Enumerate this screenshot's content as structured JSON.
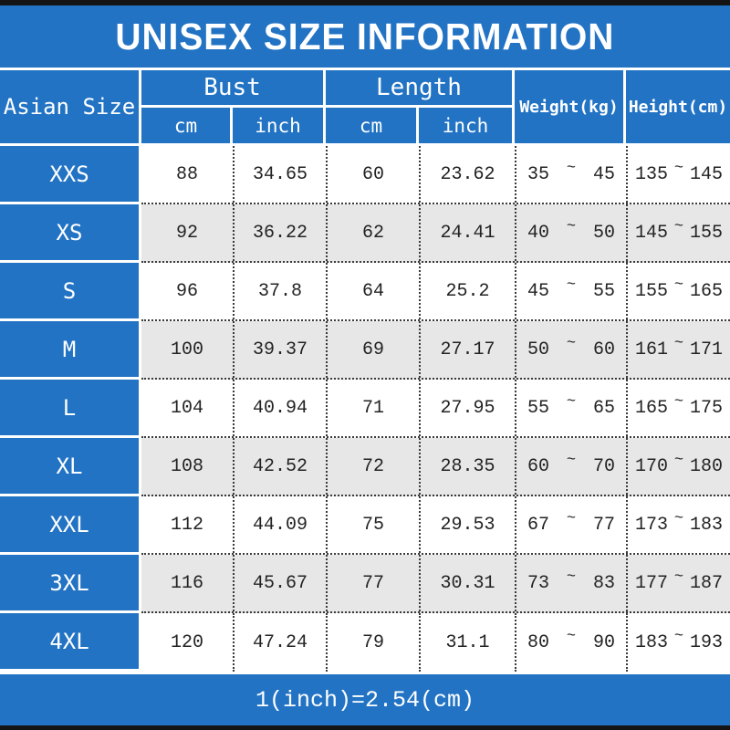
{
  "title": "UNISEX SIZE INFORMATION",
  "footer_note": "1(inch)=2.54(cm)",
  "tilde": "~",
  "colors": {
    "accent_blue": "#2273C4",
    "stripe_gray": "#E7E7E7",
    "edge_black": "#141414",
    "text_dark": "#232323"
  },
  "header": {
    "size_label": "Asian Size",
    "bust_label": "Bust",
    "length_label": "Length",
    "weight_label": "Weight(kg)",
    "height_label": "Height(cm)",
    "cm_label": "cm",
    "inch_label": "inch"
  },
  "chart_data": {
    "type": "table",
    "columns": [
      "Asian Size",
      "Bust cm",
      "Bust inch",
      "Length cm",
      "Length inch",
      "Weight(kg)",
      "Height(cm)"
    ],
    "rows": [
      {
        "size": "XXS",
        "bust_cm": "88",
        "bust_inch": "34.65",
        "length_cm": "60",
        "length_inch": "23.62",
        "weight": [
          "35",
          "45"
        ],
        "height": [
          "135",
          "145"
        ]
      },
      {
        "size": "XS",
        "bust_cm": "92",
        "bust_inch": "36.22",
        "length_cm": "62",
        "length_inch": "24.41",
        "weight": [
          "40",
          "50"
        ],
        "height": [
          "145",
          "155"
        ]
      },
      {
        "size": "S",
        "bust_cm": "96",
        "bust_inch": "37.8",
        "length_cm": "64",
        "length_inch": "25.2",
        "weight": [
          "45",
          "55"
        ],
        "height": [
          "155",
          "165"
        ]
      },
      {
        "size": "M",
        "bust_cm": "100",
        "bust_inch": "39.37",
        "length_cm": "69",
        "length_inch": "27.17",
        "weight": [
          "50",
          "60"
        ],
        "height": [
          "161",
          "171"
        ]
      },
      {
        "size": "L",
        "bust_cm": "104",
        "bust_inch": "40.94",
        "length_cm": "71",
        "length_inch": "27.95",
        "weight": [
          "55",
          "65"
        ],
        "height": [
          "165",
          "175"
        ]
      },
      {
        "size": "XL",
        "bust_cm": "108",
        "bust_inch": "42.52",
        "length_cm": "72",
        "length_inch": "28.35",
        "weight": [
          "60",
          "70"
        ],
        "height": [
          "170",
          "180"
        ]
      },
      {
        "size": "XXL",
        "bust_cm": "112",
        "bust_inch": "44.09",
        "length_cm": "75",
        "length_inch": "29.53",
        "weight": [
          "67",
          "77"
        ],
        "height": [
          "173",
          "183"
        ]
      },
      {
        "size": "3XL",
        "bust_cm": "116",
        "bust_inch": "45.67",
        "length_cm": "77",
        "length_inch": "30.31",
        "weight": [
          "73",
          "83"
        ],
        "height": [
          "177",
          "187"
        ]
      },
      {
        "size": "4XL",
        "bust_cm": "120",
        "bust_inch": "47.24",
        "length_cm": "79",
        "length_inch": "31.1",
        "weight": [
          "80",
          "90"
        ],
        "height": [
          "183",
          "193"
        ]
      }
    ]
  }
}
